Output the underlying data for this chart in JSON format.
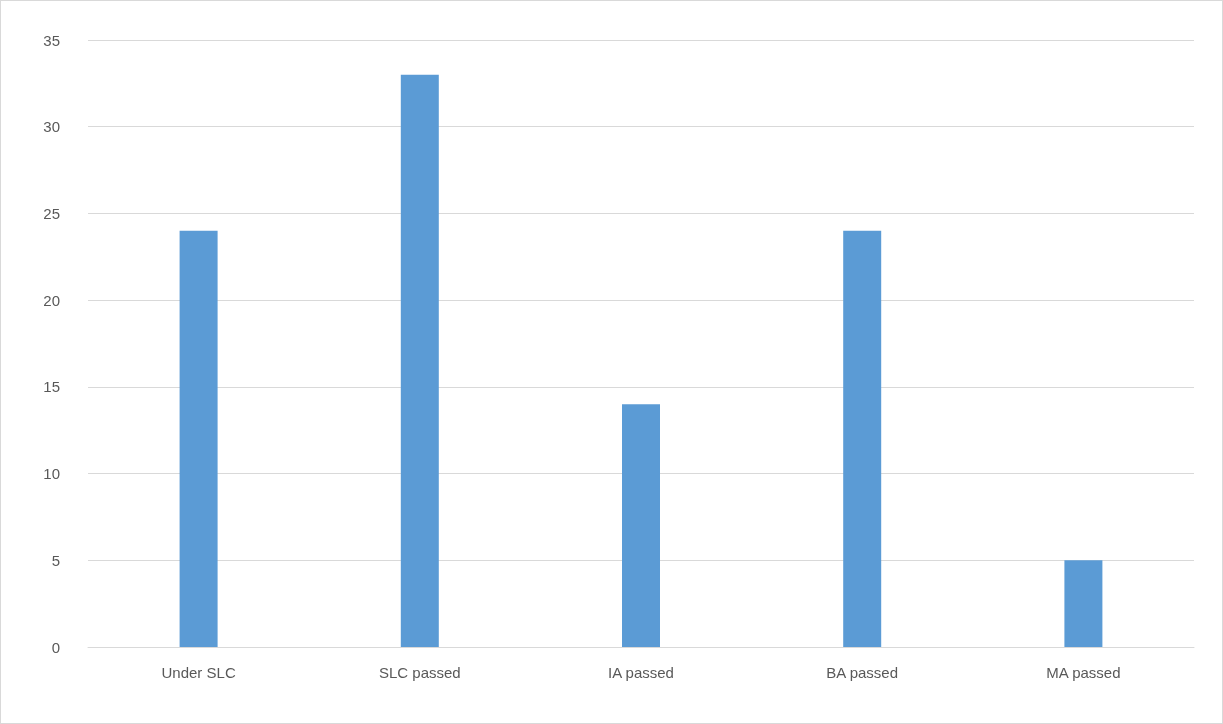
{
  "chart_data": {
    "type": "bar",
    "categories": [
      "Under SLC",
      "SLC passed",
      "IA passed",
      "BA passed",
      "MA passed"
    ],
    "values": [
      24,
      33,
      14,
      24,
      5
    ],
    "color": "#5b9bd5",
    "ylim": [
      0,
      35
    ],
    "yticks": [
      0,
      5,
      10,
      15,
      20,
      25,
      30,
      35
    ],
    "grid": "y"
  }
}
